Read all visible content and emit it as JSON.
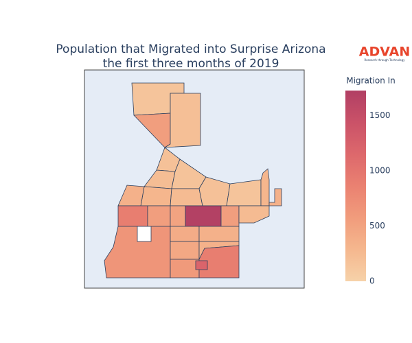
{
  "chart_data": {
    "type": "choropleth",
    "title": [
      "Population that Migrated into Surprise Arizona",
      "the first three months of 2019"
    ],
    "colorbar_title": "Migration In",
    "values": [
      150,
      550,
      200,
      180,
      220,
      160,
      300,
      250,
      180,
      150,
      350,
      300,
      900,
      550,
      500,
      1700,
      550,
      250,
      350,
      650,
      400,
      350,
      450,
      350,
      600,
      900,
      1200
    ],
    "clim": [
      0,
      1725
    ],
    "cticks": [
      0,
      500,
      1000,
      1500
    ],
    "colorscale": [
      "#f6d2a9",
      "#f5b78e",
      "#f19c7c",
      "#ea8171",
      "#dd686c",
      "#ca5268",
      "#b13f64"
    ],
    "border_color": "#2a3f5f",
    "background": "#e5ecf6",
    "logo": {
      "name": "ADVAN",
      "tagline": "Research through Technology"
    }
  }
}
